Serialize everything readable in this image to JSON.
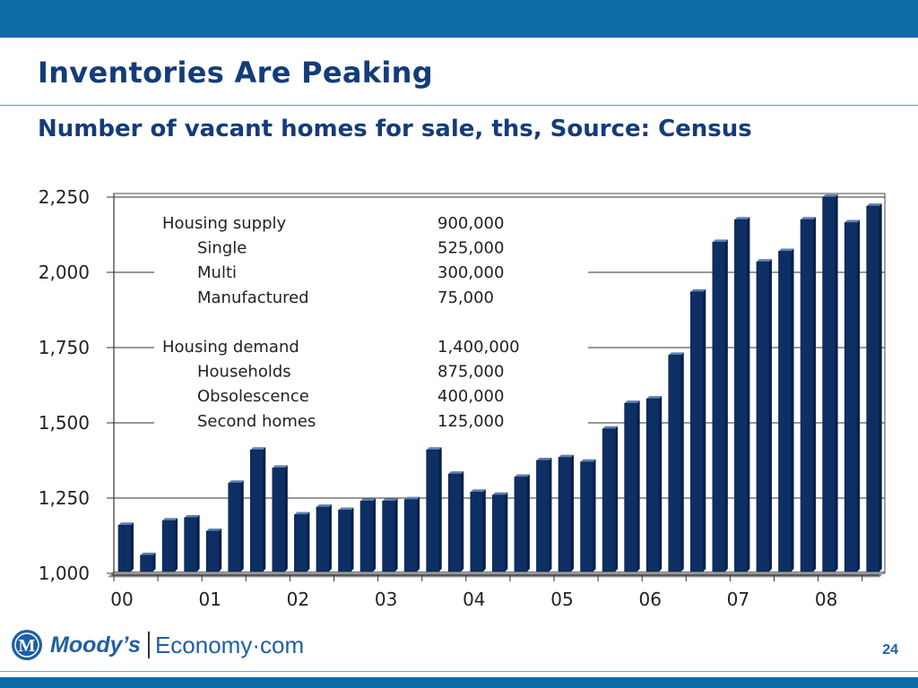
{
  "slide": {
    "title": "Inventories Are Peaking",
    "subtitle": "Number of vacant homes for sale, ths, Source: Census",
    "page_number": "24"
  },
  "brand": {
    "name_part1": "Moody’s",
    "name_part2": "Economy·com",
    "logo_letter": "M",
    "accent_color": "#0f6aa8",
    "title_color": "#143c7a"
  },
  "chart_data": {
    "type": "bar",
    "title": "",
    "xlabel": "",
    "ylabel": "",
    "ylim": [
      1000,
      2250
    ],
    "y_ticks": [
      "1,000",
      "1,250",
      "1,500",
      "1,750",
      "2,000",
      "2,250"
    ],
    "x_tick_labels": [
      "00",
      "01",
      "02",
      "03",
      "04",
      "05",
      "06",
      "07",
      "08"
    ],
    "categories": [
      "00Q1",
      "00Q2",
      "00Q3",
      "00Q4",
      "01Q1",
      "01Q2",
      "01Q3",
      "01Q4",
      "02Q1",
      "02Q2",
      "02Q3",
      "02Q4",
      "03Q1",
      "03Q2",
      "03Q3",
      "03Q4",
      "04Q1",
      "04Q2",
      "04Q3",
      "04Q4",
      "05Q1",
      "05Q2",
      "05Q3",
      "05Q4",
      "06Q1",
      "06Q2",
      "06Q3",
      "06Q4",
      "07Q1",
      "07Q2",
      "07Q3",
      "07Q4",
      "08Q1",
      "08Q2",
      "08Q3"
    ],
    "values": [
      1160,
      1060,
      1175,
      1185,
      1140,
      1300,
      1410,
      1350,
      1195,
      1220,
      1210,
      1240,
      1240,
      1245,
      1410,
      1330,
      1270,
      1260,
      1320,
      1375,
      1385,
      1370,
      1480,
      1565,
      1580,
      1725,
      1935,
      2100,
      2175,
      2035,
      2070,
      2175,
      2250,
      2165,
      2220
    ],
    "bar_color": "#0d2f63",
    "grid": true,
    "legend": "none",
    "annotations": {
      "supply": {
        "heading": "Housing supply",
        "heading_value": "900,000",
        "items": [
          {
            "label": "Single",
            "value": "525,000"
          },
          {
            "label": "Multi",
            "value": "300,000"
          },
          {
            "label": "Manufactured",
            "value": "75,000"
          }
        ]
      },
      "demand": {
        "heading": "Housing demand",
        "heading_value": "1,400,000",
        "items": [
          {
            "label": "Households",
            "value": "875,000"
          },
          {
            "label": "Obsolescence",
            "value": "400,000"
          },
          {
            "label": "Second homes",
            "value": "125,000"
          }
        ]
      }
    }
  }
}
